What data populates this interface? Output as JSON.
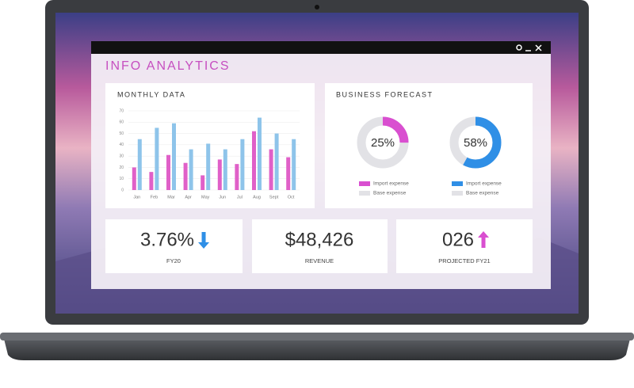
{
  "window": {
    "title": "INFO ANALYTICS"
  },
  "monthly_data": {
    "type": "bar",
    "title": "MONTHLY DATA",
    "categories": [
      "Jan",
      "Feb",
      "Mar",
      "Apr",
      "May",
      "Jun",
      "Jul",
      "Aug",
      "Sept",
      "Oct"
    ],
    "series": [
      {
        "color": "#e060c8",
        "values": [
          20,
          16,
          31,
          24,
          13,
          27,
          23,
          52,
          36,
          29
        ]
      },
      {
        "color": "#8ec4ea",
        "values": [
          45,
          55,
          59,
          36,
          41,
          36,
          45,
          64,
          50,
          45
        ]
      }
    ],
    "ylim": [
      0,
      70
    ],
    "yticks": [
      0,
      10,
      20,
      30,
      40,
      50,
      60,
      70
    ],
    "grid": true
  },
  "business_forecast": {
    "title": "BUSINESS FORECAST",
    "donuts": [
      {
        "value": 25,
        "value_label": "25%",
        "color": "#d94fd0",
        "base_color": "#e2e2e6",
        "legend": [
          "Import expense",
          "Base expense"
        ]
      },
      {
        "value": 58,
        "value_label": "58%",
        "color": "#2f8fe6",
        "base_color": "#e2e2e6",
        "legend": [
          "Import expense",
          "Base expense"
        ]
      }
    ]
  },
  "kpis": [
    {
      "value": "3.76%",
      "label": "FY20",
      "trend": "down",
      "color": "#2f8fe6"
    },
    {
      "value": "$48,426",
      "label": "REVENUE"
    },
    {
      "value": "026",
      "label": "PROJECTED FY21",
      "trend": "up",
      "color": "#d94fd0"
    }
  ]
}
